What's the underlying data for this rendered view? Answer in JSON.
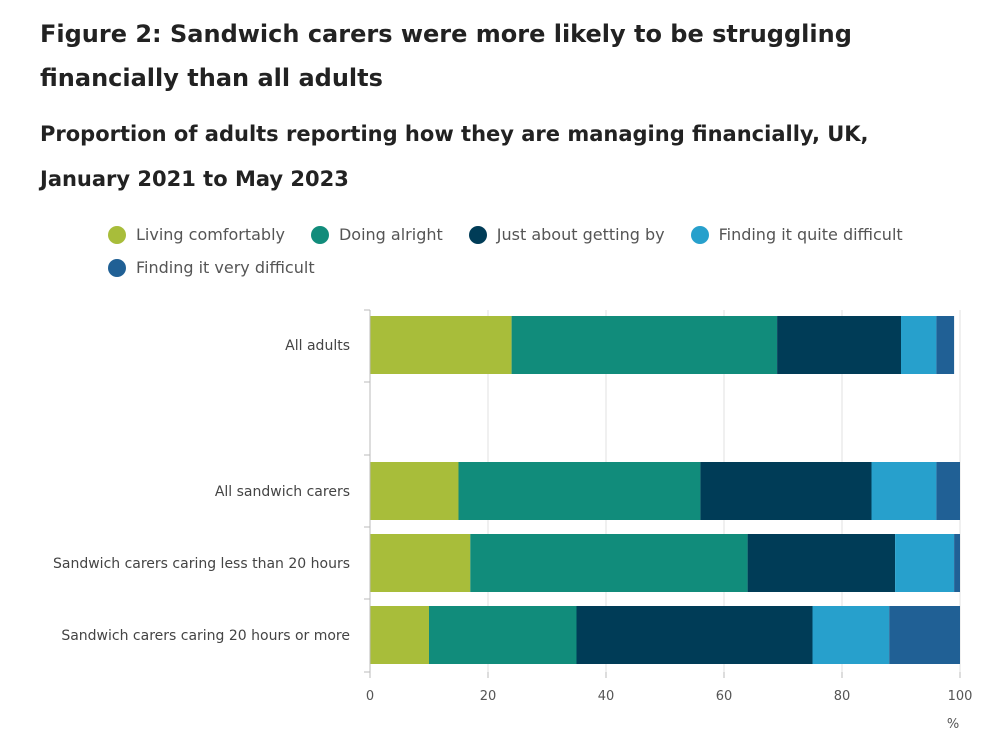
{
  "title": "Figure 2: Sandwich carers were more likely to be struggling financially than all adults",
  "subtitle": "Proportion of adults reporting how they are managing financially, UK, January 2021 to May 2023",
  "chart_data": {
    "type": "bar",
    "orientation": "horizontal",
    "stacked": true,
    "title": "Proportion of adults reporting how they are managing financially, UK, January 2021 to May 2023",
    "xlabel": "%",
    "ylabel": "",
    "xlim": [
      0,
      100
    ],
    "xticks": [
      0,
      20,
      40,
      60,
      80,
      100
    ],
    "legend_position": "top",
    "categories": [
      "All adults",
      "",
      "All sandwich carers",
      "Sandwich carers caring less than 20 hours",
      "Sandwich carers caring 20 hours or more"
    ],
    "series": [
      {
        "name": "Living comfortably",
        "color": "#a8bd3a",
        "values": [
          24,
          null,
          15,
          17,
          10
        ]
      },
      {
        "name": "Doing alright",
        "color": "#118c7b",
        "values": [
          45,
          null,
          41,
          47,
          25
        ]
      },
      {
        "name": "Just about getting by",
        "color": "#003c57",
        "values": [
          21,
          null,
          29,
          25,
          40
        ]
      },
      {
        "name": "Finding it quite difficult",
        "color": "#27a0cc",
        "values": [
          6,
          null,
          11,
          10,
          13
        ]
      },
      {
        "name": "Finding it very difficult",
        "color": "#206095",
        "values": [
          3,
          null,
          4,
          1,
          12
        ]
      }
    ]
  }
}
